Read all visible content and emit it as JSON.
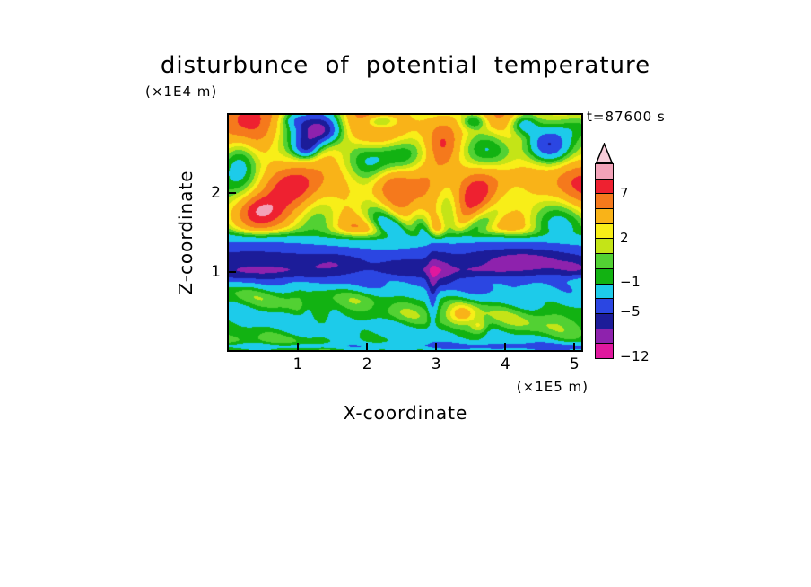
{
  "title": "disturbunce of potential temperature",
  "annotations": {
    "time_label": "t=87600 s"
  },
  "axes": {
    "x": {
      "label": "X-coordinate",
      "unit": "(×1E5 m)",
      "range": [
        0,
        5.1
      ],
      "ticks": [
        {
          "value": 1,
          "label": "1"
        },
        {
          "value": 2,
          "label": "2"
        },
        {
          "value": 3,
          "label": "3"
        },
        {
          "value": 4,
          "label": "4"
        },
        {
          "value": 5,
          "label": "5"
        }
      ]
    },
    "z": {
      "label": "Z-coordinate",
      "unit": "(×1E4 m)",
      "range": [
        0,
        3
      ],
      "ticks": [
        {
          "value": 1,
          "label": "1"
        },
        {
          "value": 2,
          "label": "2"
        }
      ]
    }
  },
  "colorbar": {
    "arrow_color": "#f7ccd8",
    "segments": [
      {
        "min": 9,
        "color": "#f3a2b8"
      },
      {
        "min": 7,
        "color": "#ee2130"
      },
      {
        "min": 5,
        "color": "#f5791c"
      },
      {
        "min": 3,
        "color": "#f9b318"
      },
      {
        "min": 2,
        "color": "#f8ee18"
      },
      {
        "min": 1,
        "color": "#c4e417"
      },
      {
        "min": 0,
        "color": "#52d133"
      },
      {
        "min": -1,
        "color": "#12b212"
      },
      {
        "min": -3,
        "color": "#1dcbea"
      },
      {
        "min": -5,
        "color": "#2b46e2"
      },
      {
        "min": -7,
        "color": "#1c1c99"
      },
      {
        "min": -9,
        "color": "#8e22ad"
      },
      {
        "min": -12,
        "color": "#e0189e"
      }
    ],
    "labels": [
      {
        "text": "7",
        "min": 7
      },
      {
        "text": "2",
        "min": 2
      },
      {
        "text": "−1",
        "min": -1
      },
      {
        "text": "−5",
        "min": -5
      },
      {
        "text": "−12",
        "min": -12
      }
    ]
  },
  "chart_data": {
    "type": "heatmap",
    "subtype": "filled_contour",
    "title": "disturbunce of potential temperature",
    "xlabel": "X-coordinate (×1E5 m)",
    "ylabel": "Z-coordinate (×1E4 m)",
    "time_annotation": "t=87600 s",
    "x_range": [
      0,
      5.1
    ],
    "z_range": [
      0,
      3
    ],
    "levels_low_to_high": [
      -12,
      -9,
      -7,
      -5,
      -3,
      -1,
      0,
      1,
      2,
      3,
      5,
      7,
      9
    ],
    "labeled_levels": [
      7,
      2,
      -1,
      -5,
      -12
    ],
    "description": "Vertical cross-section of potential temperature disturbance: warm (yellow/orange/red) wavy fan-shaped pattern radiating upward above z≈1.5 with embedded cold (dark blue) and neutral (green) cells; strong cold blue band near z≈1.1 with navy cores; green/cyan stratified layers below z≈0.8 with a thin cold line at the surface.",
    "render_model": {
      "source": {
        "x": 3.05,
        "z": 1.05,
        "x_squash": 0.75
      },
      "upper_fade": [
        1.36,
        1.6
      ],
      "lower_fade": [
        0.8,
        1.04
      ],
      "upper_base": 2.9,
      "lower_base": -0.45,
      "clamp": [
        -11.5,
        10.2
      ],
      "waves_upper": [
        {
          "type": "fan",
          "amp": 2.4,
          "ktheta": 8.0,
          "kr": 5.2,
          "phase": 0.2
        },
        {
          "type": "fan",
          "amp": 1.2,
          "ktheta": 13.0,
          "kr": 2.0,
          "phase": 1.1
        },
        {
          "type": "radial",
          "amp": 1.4,
          "kr": 7.0,
          "phase": 0.5
        },
        {
          "type": "plane",
          "amp": 1.3,
          "kx": 2.7,
          "kz": 2.2,
          "phase": 1.3
        },
        {
          "type": "plane",
          "amp": 0.7,
          "kx": 6.5,
          "kz": 4.3,
          "phase": 0.4
        }
      ],
      "waves_lower": [
        {
          "type": "plane",
          "amp": 1.25,
          "kx": 0.8,
          "kz": 9.5,
          "phase": 0.8
        },
        {
          "type": "plane",
          "amp": 0.55,
          "kx": 4.5,
          "kz": 15.0,
          "phase": 2.2
        },
        {
          "type": "plane",
          "amp": 0.35,
          "kx": 9.0,
          "kz": 5.0,
          "phase": 0.9
        }
      ],
      "bands": [
        {
          "center": 1.13,
          "sigma": 0.3,
          "amp": -4.9,
          "kx": 1.7,
          "mod": 0.22,
          "phase": 1.0
        },
        {
          "center": 1.0,
          "sigma": 0.09,
          "amp": -1.5,
          "kx": 2.3,
          "mod": 0.5,
          "phase": 0.3
        },
        {
          "center": 0.045,
          "sigma": 0.05,
          "amp": -2.4,
          "kx": 0.0,
          "mod": 0.0,
          "phase": 0.0
        }
      ],
      "blobs": [
        [
          1.3,
          2.8,
          0.3,
          0.18,
          -9.0
        ],
        [
          1.12,
          2.58,
          0.18,
          0.14,
          -6.0
        ],
        [
          4.6,
          2.62,
          0.34,
          0.26,
          -9.5
        ],
        [
          4.25,
          2.88,
          0.22,
          0.15,
          -6.0
        ],
        [
          2.18,
          2.92,
          0.26,
          0.12,
          -7.0
        ],
        [
          3.55,
          2.92,
          0.18,
          0.1,
          -4.0
        ],
        [
          2.6,
          2.48,
          0.34,
          0.26,
          -3.2
        ],
        [
          0.18,
          2.55,
          0.25,
          0.35,
          -3.4
        ],
        [
          5.05,
          2.88,
          0.28,
          0.18,
          -3.2
        ],
        [
          0.95,
          2.95,
          0.2,
          0.12,
          -3.0
        ],
        [
          1.02,
          2.12,
          0.34,
          0.26,
          4.2
        ],
        [
          0.45,
          1.78,
          0.28,
          0.18,
          3.4
        ],
        [
          3.95,
          2.28,
          0.38,
          0.28,
          4.4
        ],
        [
          5.02,
          2.12,
          0.3,
          0.3,
          4.0
        ],
        [
          2.35,
          2.18,
          0.28,
          0.22,
          3.2
        ],
        [
          3.1,
          2.62,
          0.2,
          0.25,
          3.0
        ],
        [
          1.55,
          1.1,
          0.45,
          0.13,
          -2.4
        ],
        [
          2.5,
          1.05,
          0.35,
          0.11,
          -2.2
        ],
        [
          3.05,
          0.98,
          0.18,
          0.25,
          -2.6
        ],
        [
          4.3,
          1.14,
          0.55,
          0.13,
          -2.4
        ],
        [
          5.0,
          1.05,
          0.3,
          0.12,
          -2.0
        ],
        [
          2.95,
          0.72,
          0.07,
          0.42,
          -3.0
        ],
        [
          3.38,
          0.46,
          0.2,
          0.12,
          3.4
        ],
        [
          3.62,
          0.3,
          0.12,
          0.09,
          2.6
        ],
        [
          1.15,
          0.48,
          0.1,
          0.22,
          -1.6
        ],
        [
          1.52,
          0.34,
          0.09,
          0.16,
          -1.4
        ],
        [
          2.2,
          0.55,
          0.3,
          0.1,
          -1.2
        ]
      ]
    }
  }
}
